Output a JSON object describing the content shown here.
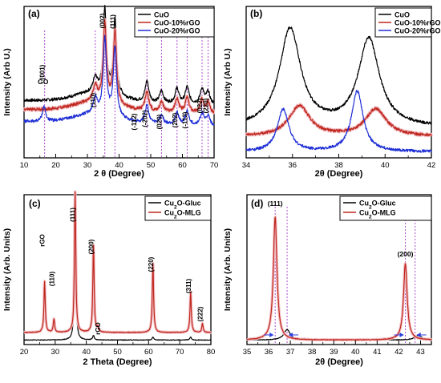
{
  "chart_data": [
    {
      "panel": "(a)",
      "type": "line",
      "xlabel": "2 θ (Degree)",
      "ylabel": "Intensity (Arb U.)",
      "xlim": [
        10,
        70
      ],
      "xticks": [
        10,
        20,
        30,
        40,
        50,
        60,
        70
      ],
      "legend_position": "top-right",
      "series": [
        {
          "name": "CuO",
          "color": "#000000",
          "baseline": 0.38,
          "peaks": [
            [
              32.5,
              0.1,
              0.8
            ],
            [
              35.5,
              0.55,
              0.6
            ],
            [
              38.7,
              0.5,
              0.6
            ],
            [
              48.8,
              0.14,
              0.7
            ],
            [
              53.4,
              0.08,
              0.7
            ],
            [
              58.3,
              0.1,
              0.7
            ],
            [
              61.5,
              0.11,
              0.7
            ],
            [
              66.2,
              0.1,
              0.7
            ],
            [
              68.1,
              0.08,
              0.7
            ]
          ]
        },
        {
          "name": "CuO-10%rGO",
          "color": "#c0281f",
          "baseline": 0.32,
          "peaks": [
            [
              32.5,
              0.1,
              0.8
            ],
            [
              35.5,
              0.52,
              0.6
            ],
            [
              38.7,
              0.48,
              0.6
            ],
            [
              48.8,
              0.13,
              0.7
            ],
            [
              53.4,
              0.07,
              0.7
            ],
            [
              58.3,
              0.09,
              0.7
            ],
            [
              61.5,
              0.1,
              0.7
            ],
            [
              66.2,
              0.09,
              0.7
            ],
            [
              68.1,
              0.07,
              0.7
            ]
          ]
        },
        {
          "name": "CuO-20%rGO",
          "color": "#1f2fd6",
          "baseline": 0.24,
          "peaks": [
            [
              16.3,
              0.1,
              0.6
            ],
            [
              32.5,
              0.1,
              0.8
            ],
            [
              35.5,
              0.5,
              0.6
            ],
            [
              38.7,
              0.46,
              0.6
            ],
            [
              48.8,
              0.12,
              0.7
            ],
            [
              53.4,
              0.06,
              0.7
            ],
            [
              58.3,
              0.08,
              0.7
            ],
            [
              61.5,
              0.09,
              0.7
            ],
            [
              66.2,
              0.08,
              0.7
            ],
            [
              68.1,
              0.06,
              0.7
            ]
          ]
        }
      ],
      "reference_lines": [
        16.5,
        32.5,
        35.5,
        38.7,
        48.8,
        53.4,
        58.3,
        61.5,
        66.2,
        68.1
      ],
      "annotations": [
        {
          "text": "(002)",
          "x": 35.5
        },
        {
          "text": "(111)",
          "x": 38.7
        },
        {
          "text": "(110)",
          "x": 32.5
        },
        {
          "text": "(-112)",
          "x": 45.5
        },
        {
          "text": "(-202)",
          "x": 48.8
        },
        {
          "text": "(020)",
          "x": 53.4
        },
        {
          "text": "(202)",
          "x": 58.3
        },
        {
          "text": "(-113)",
          "x": 61.5
        },
        {
          "text": "(022)",
          "x": 66.2
        },
        {
          "text": "(220)",
          "x": 68.1
        },
        {
          "text": "(001)",
          "x": 16.5
        },
        {
          "text": "GO",
          "x": 16.0
        }
      ]
    },
    {
      "panel": "(b)",
      "type": "line",
      "xlabel": "2θ (Degree)",
      "ylabel": "Intensity (Arb U.)",
      "xlim": [
        34,
        42
      ],
      "xticks": [
        34,
        36,
        38,
        40,
        42
      ],
      "legend_position": "top-right",
      "series": [
        {
          "name": "CuO",
          "color": "#000000",
          "baseline": 0.2,
          "peaks": [
            [
              35.9,
              0.65,
              0.55
            ],
            [
              39.3,
              0.58,
              0.55
            ]
          ]
        },
        {
          "name": "CuO-10%rGO",
          "color": "#c0281f",
          "baseline": 0.14,
          "peaks": [
            [
              36.3,
              0.2,
              0.55
            ],
            [
              39.6,
              0.18,
              0.55
            ]
          ]
        },
        {
          "name": "CuO-20%rGO",
          "color": "#1f2fd6",
          "baseline": 0.04,
          "peaks": [
            [
              35.6,
              0.28,
              0.3
            ],
            [
              38.8,
              0.4,
              0.3
            ]
          ]
        }
      ]
    },
    {
      "panel": "(c)",
      "type": "line",
      "xlabel": "2 Theta (Degree)",
      "ylabel": "Intensity (Arb. Units)",
      "xlim": [
        20,
        80
      ],
      "xticks": [
        20,
        30,
        40,
        50,
        60,
        70,
        80
      ],
      "legend_position": "top-right",
      "series": [
        {
          "name": "Cu2O-Gluc",
          "color": "#000000",
          "baseline": 0.03,
          "peaks": [
            [
              36.4,
              0.7,
              0.3
            ],
            [
              42.3,
              0.03,
              0.3
            ],
            [
              61.4,
              0.02,
              0.3
            ],
            [
              73.5,
              0.02,
              0.3
            ]
          ]
        },
        {
          "name": "Cu2O-MLG",
          "color": "#c0281f",
          "baseline": 0.08,
          "peaks": [
            [
              26.6,
              0.34,
              0.25
            ],
            [
              29.6,
              0.09,
              0.25
            ],
            [
              36.4,
              0.95,
              0.25
            ],
            [
              42.3,
              0.58,
              0.25
            ],
            [
              43.7,
              0.03,
              0.25
            ],
            [
              61.4,
              0.46,
              0.25
            ],
            [
              73.5,
              0.27,
              0.25
            ],
            [
              77.3,
              0.06,
              0.25
            ]
          ]
        }
      ],
      "annotations": [
        {
          "text": "rGO",
          "x": 26.6
        },
        {
          "text": "(110)",
          "x": 29.6
        },
        {
          "text": "(111)",
          "x": 36.4
        },
        {
          "text": "(200)",
          "x": 42.3
        },
        {
          "text": "rGO",
          "x": 44.5
        },
        {
          "text": "(220)",
          "x": 61.4
        },
        {
          "text": "(311)",
          "x": 73.5
        },
        {
          "text": "(222)",
          "x": 77.3
        }
      ]
    },
    {
      "panel": "(d)",
      "type": "line",
      "xlabel": "2θ (Degree)",
      "ylabel": "Intensity (Arb. Units)",
      "xlim": [
        35,
        43.5
      ],
      "xticks": [
        35,
        36,
        37,
        38,
        39,
        40,
        41,
        42,
        43
      ],
      "legend_position": "top-right",
      "series": [
        {
          "name": "Cu2O-Gluc",
          "color": "#000000",
          "baseline": 0.03,
          "peaks": [
            [
              36.85,
              0.07,
              0.18
            ],
            [
              42.9,
              0.03,
              0.2
            ]
          ]
        },
        {
          "name": "Cu2O-MLG",
          "color": "#c0281f",
          "baseline": 0.03,
          "peaks": [
            [
              36.3,
              0.82,
              0.1
            ],
            [
              42.3,
              0.51,
              0.1
            ]
          ]
        }
      ],
      "reference_lines": [
        36.3,
        36.85,
        42.3,
        42.75
      ],
      "annotations": [
        {
          "text": "(111)",
          "x": 36.3
        },
        {
          "text": "(200)",
          "x": 42.3
        }
      ]
    }
  ]
}
